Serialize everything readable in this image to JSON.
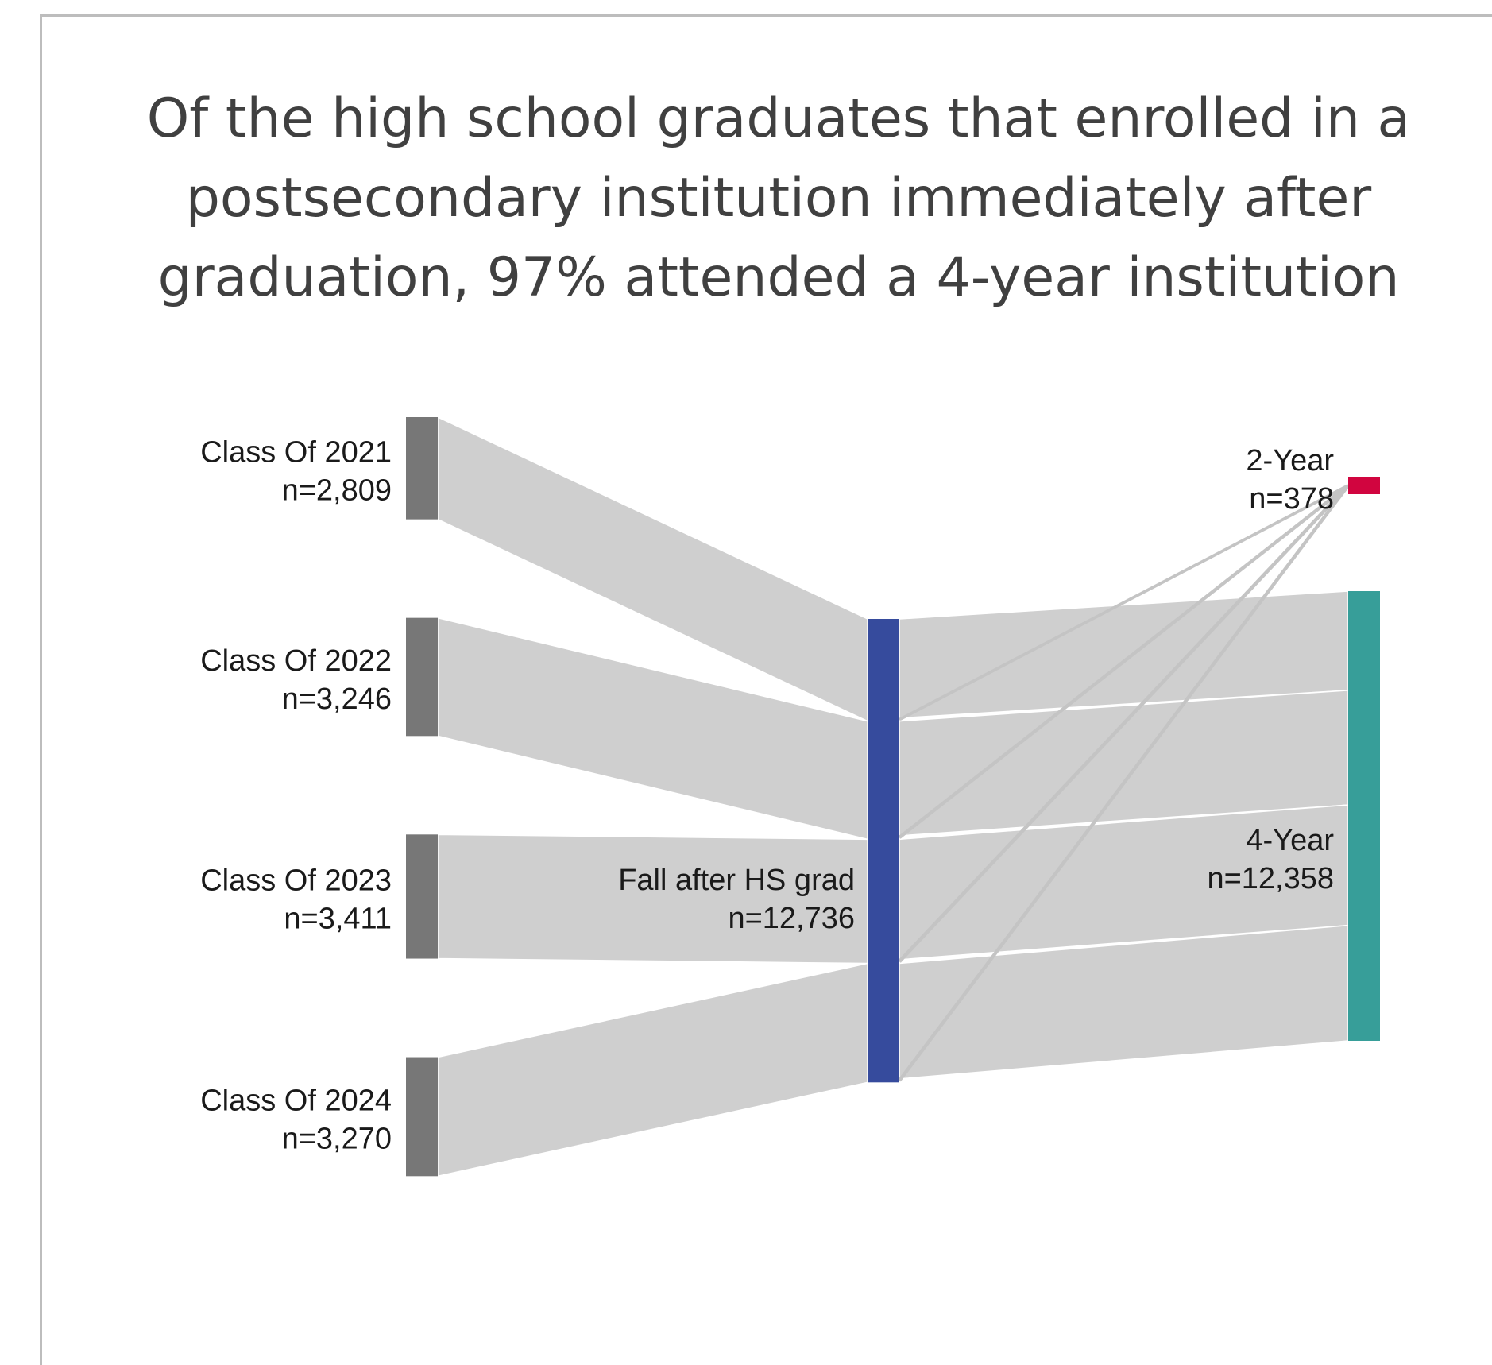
{
  "title": "Of the high school graduates that enrolled in a postsecondary institution immediately after graduation, 97% attended a 4-year institution",
  "colors": {
    "source_nodes": "#777777",
    "middle_node": "#364b9d",
    "two_year": "#d1053f",
    "four_year": "#379e99",
    "links": "#cfcfcf"
  },
  "chart_data": {
    "type": "sankey",
    "title": "Of the high school graduates that enrolled in a postsecondary institution immediately after graduation, 97% attended a 4-year institution",
    "nodes": [
      {
        "id": "c2021",
        "label": "Class Of 2021",
        "value_label": "n=2,809",
        "value": 2809
      },
      {
        "id": "c2022",
        "label": "Class Of 2022",
        "value_label": "n=3,246",
        "value": 3246
      },
      {
        "id": "c2023",
        "label": "Class Of 2023",
        "value_label": "n=3,411",
        "value": 3411
      },
      {
        "id": "c2024",
        "label": "Class Of 2024",
        "value_label": "n=3,270",
        "value": 3270
      },
      {
        "id": "fall",
        "label": "Fall after HS grad",
        "value_label": "n=12,736",
        "value": 12736
      },
      {
        "id": "two",
        "label": "2-Year",
        "value_label": "n=378",
        "value": 378
      },
      {
        "id": "four",
        "label": "4-Year",
        "value_label": "n=12,358",
        "value": 12358
      }
    ],
    "links": [
      {
        "source": "c2021",
        "target": "fall",
        "value": 2809
      },
      {
        "source": "c2022",
        "target": "fall",
        "value": 3246
      },
      {
        "source": "c2023",
        "target": "fall",
        "value": 3411
      },
      {
        "source": "c2024",
        "target": "fall",
        "value": 3270
      },
      {
        "source": "fall",
        "target": "two",
        "value": 378
      },
      {
        "source": "fall",
        "target": "four",
        "value": 12358
      }
    ]
  }
}
